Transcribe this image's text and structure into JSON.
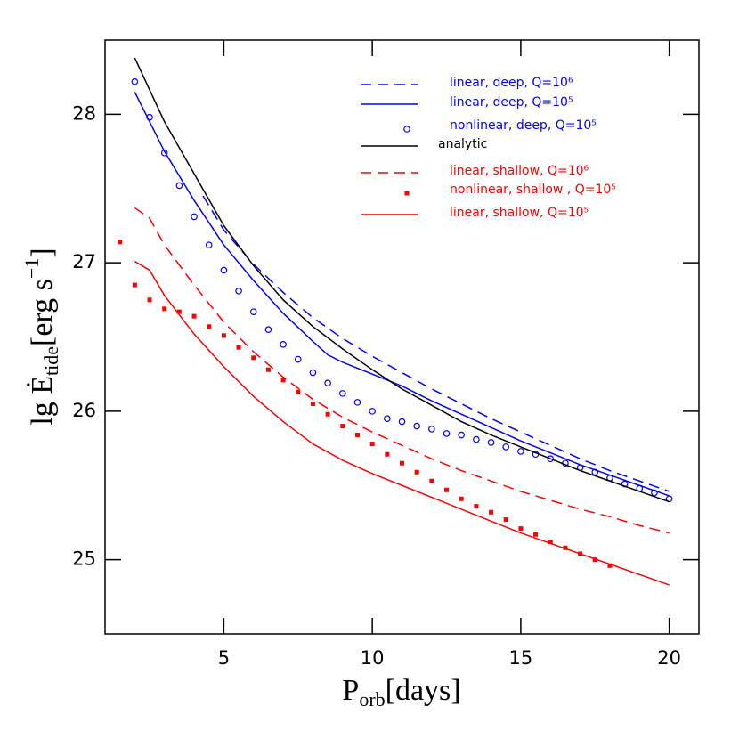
{
  "chart_data": {
    "type": "line",
    "xlabel": [
      "P",
      "orb",
      "[days]"
    ],
    "ylabel": [
      "lg Ė",
      "tide",
      "[erg s",
      "−1",
      "]"
    ],
    "xlim": [
      1,
      21
    ],
    "ylim": [
      24.5,
      28.5
    ],
    "xticks": [
      5,
      10,
      15,
      20
    ],
    "yticks": [
      25,
      26,
      27,
      28
    ],
    "legend": "upper right",
    "series": [
      {
        "name": "linear, deep, Q=10⁶",
        "color": "#0000ff",
        "style": "dashed",
        "x": [
          4.3,
          5,
          6,
          7,
          8,
          9,
          10,
          11,
          12,
          13,
          14,
          15,
          16,
          17,
          18,
          19,
          20
        ],
        "values": [
          27.45,
          27.22,
          26.99,
          26.8,
          26.63,
          26.49,
          26.37,
          26.26,
          26.15,
          26.05,
          25.95,
          25.86,
          25.77,
          25.68,
          25.6,
          25.53,
          25.46
        ]
      },
      {
        "name": "linear, deep, Q=10⁵",
        "color": "#0000ff",
        "style": "solid",
        "x": [
          2,
          2.5,
          3,
          4,
          5,
          6,
          7,
          8,
          8.5,
          9,
          10,
          11,
          12,
          13,
          14,
          15,
          16,
          17,
          18,
          19,
          20
        ],
        "values": [
          28.15,
          27.95,
          27.75,
          27.42,
          27.12,
          26.88,
          26.66,
          26.47,
          26.38,
          26.33,
          26.25,
          26.17,
          26.07,
          25.98,
          25.89,
          25.8,
          25.72,
          25.64,
          25.57,
          25.5,
          25.43
        ]
      },
      {
        "name": "nonlinear, deep, Q=10⁵",
        "color": "#0000ff",
        "style": "circle",
        "x": [
          2,
          2.5,
          3,
          3.5,
          4,
          4.5,
          5,
          5.5,
          6,
          6.5,
          7,
          7.5,
          8,
          8.5,
          9,
          9.5,
          10,
          10.5,
          11,
          11.5,
          12,
          12.5,
          13,
          13.5,
          14,
          14.5,
          15,
          15.5,
          16,
          16.5,
          17,
          17.5,
          18,
          18.5,
          19,
          19.5,
          20
        ],
        "values": [
          28.22,
          27.98,
          27.74,
          27.52,
          27.31,
          27.12,
          26.95,
          26.81,
          26.67,
          26.55,
          26.45,
          26.35,
          26.26,
          26.19,
          26.12,
          26.06,
          26.0,
          25.95,
          25.93,
          25.9,
          25.88,
          25.85,
          25.84,
          25.81,
          25.79,
          25.76,
          25.73,
          25.71,
          25.68,
          25.65,
          25.62,
          25.59,
          25.55,
          25.51,
          25.48,
          25.45,
          25.41
        ]
      },
      {
        "name": "analytic",
        "color": "#000000",
        "style": "solid",
        "x": [
          2,
          3,
          4,
          5,
          6,
          7,
          8,
          9,
          10,
          11,
          12,
          13,
          14,
          15,
          16,
          17,
          18,
          19,
          20
        ],
        "values": [
          28.38,
          27.95,
          27.6,
          27.25,
          26.98,
          26.75,
          26.57,
          26.42,
          26.28,
          26.15,
          26.04,
          25.93,
          25.84,
          25.76,
          25.68,
          25.6,
          25.53,
          25.46,
          25.39
        ]
      },
      {
        "name": "linear, shallow, Q=10⁶",
        "color": "#ff0000",
        "style": "dashed",
        "x": [
          2,
          2.5,
          3,
          4,
          5,
          6,
          7,
          8,
          9,
          10,
          11,
          12,
          13,
          14,
          15,
          16,
          17,
          18,
          19,
          20
        ],
        "values": [
          27.37,
          27.3,
          27.12,
          26.85,
          26.6,
          26.4,
          26.23,
          26.08,
          25.96,
          25.86,
          25.77,
          25.68,
          25.6,
          25.53,
          25.46,
          25.4,
          25.34,
          25.29,
          25.23,
          25.18
        ]
      },
      {
        "name": "nonlinear, shallow , Q=10⁵",
        "color": "#ff0000",
        "style": "square",
        "x": [
          1.5,
          2,
          2.5,
          3,
          3.5,
          4,
          4.5,
          5,
          5.5,
          6,
          6.5,
          7,
          7.5,
          8,
          8.5,
          9,
          9.5,
          10,
          10.5,
          11,
          11.5,
          12,
          12.5,
          13,
          13.5,
          14,
          14.5,
          15,
          15.5,
          16,
          16.5,
          17,
          17.5,
          18
        ],
        "values": [
          27.14,
          26.85,
          26.75,
          26.69,
          26.67,
          26.64,
          26.57,
          26.51,
          26.43,
          26.36,
          26.28,
          26.21,
          26.13,
          26.05,
          25.98,
          25.9,
          25.84,
          25.78,
          25.71,
          25.65,
          25.59,
          25.53,
          25.47,
          25.41,
          25.36,
          25.32,
          25.27,
          25.21,
          25.17,
          25.12,
          25.08,
          25.04,
          25.0,
          24.96
        ]
      },
      {
        "name": "linear, shallow, Q=10⁵",
        "color": "#ff0000",
        "style": "solid",
        "x": [
          2,
          2.5,
          3,
          4,
          5,
          6,
          7,
          8,
          9,
          10,
          11,
          12,
          13,
          14,
          15,
          16,
          17,
          18,
          19,
          20
        ],
        "values": [
          27.01,
          26.95,
          26.78,
          26.52,
          26.3,
          26.1,
          25.93,
          25.78,
          25.67,
          25.58,
          25.5,
          25.42,
          25.34,
          25.26,
          25.18,
          25.11,
          25.04,
          24.97,
          24.9,
          24.83
        ]
      }
    ]
  }
}
